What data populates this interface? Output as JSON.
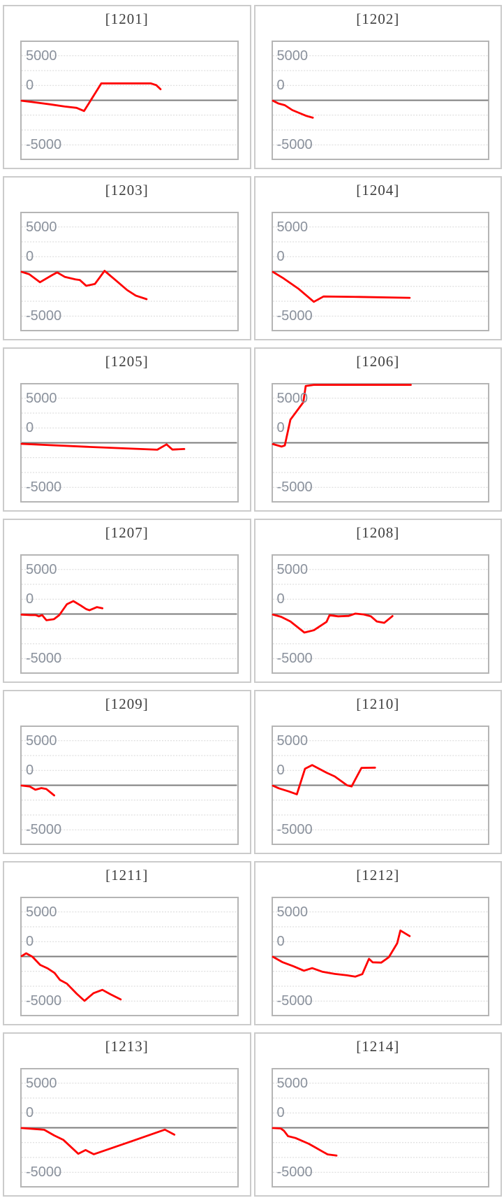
{
  "page": {
    "background": "#ffffff"
  },
  "colors": {
    "series_line": "#ff0000",
    "grid_dotted": "#d7d7d7",
    "zero_line": "#7d7d7d",
    "plot_border": "#b5b5b5",
    "card_border": "#cbcbcb",
    "tick_label": "#8a919c",
    "title_text": "#3d3d3d"
  },
  "chart_data": {
    "type": "line",
    "ylim": [
      -6550,
      6550
    ],
    "grid": true,
    "gridlines": [
      5000,
      3333,
      1667,
      -1667,
      -3333,
      -5000
    ],
    "zero_line_value": 0,
    "yticks": [
      {
        "label": "5000",
        "value": 5000,
        "anchor": 5000
      },
      {
        "label": "0",
        "value": 0,
        "anchor": 1667
      },
      {
        "label": "-5000",
        "value": -5000,
        "anchor": -5000
      }
    ],
    "series_color": "#ff0000",
    "charts": [
      {
        "title": "[1201]",
        "points": [
          [
            0,
            -50
          ],
          [
            0.05,
            -200
          ],
          [
            0.13,
            -450
          ],
          [
            0.2,
            -700
          ],
          [
            0.255,
            -850
          ],
          [
            0.29,
            -1200
          ],
          [
            0.37,
            1900
          ],
          [
            0.6,
            1900
          ],
          [
            0.625,
            1700
          ],
          [
            0.645,
            1250
          ]
        ]
      },
      {
        "title": "[1202]",
        "points": [
          [
            0,
            -50
          ],
          [
            0.025,
            -350
          ],
          [
            0.055,
            -550
          ],
          [
            0.09,
            -1100
          ],
          [
            0.125,
            -1450
          ],
          [
            0.155,
            -1750
          ],
          [
            0.185,
            -1950
          ]
        ]
      },
      {
        "title": "[1203]",
        "points": [
          [
            0,
            -30
          ],
          [
            0.035,
            -300
          ],
          [
            0.085,
            -1200
          ],
          [
            0.145,
            -350
          ],
          [
            0.165,
            -100
          ],
          [
            0.2,
            -600
          ],
          [
            0.25,
            -880
          ],
          [
            0.27,
            -950
          ],
          [
            0.3,
            -1600
          ],
          [
            0.34,
            -1400
          ],
          [
            0.385,
            80
          ],
          [
            0.44,
            -1040
          ],
          [
            0.49,
            -2080
          ],
          [
            0.53,
            -2700
          ],
          [
            0.58,
            -3100
          ]
        ]
      },
      {
        "title": "[1204]",
        "points": [
          [
            0,
            -50
          ],
          [
            0.045,
            -700
          ],
          [
            0.12,
            -1950
          ],
          [
            0.19,
            -3400
          ],
          [
            0.235,
            -2800
          ],
          [
            0.4,
            -2850
          ],
          [
            0.635,
            -2950
          ]
        ]
      },
      {
        "title": "[1205]",
        "points": [
          [
            0,
            -120
          ],
          [
            0.3,
            -450
          ],
          [
            0.63,
            -780
          ],
          [
            0.673,
            -180
          ],
          [
            0.7,
            -760
          ],
          [
            0.755,
            -700
          ]
        ]
      },
      {
        "title": "[1206]",
        "points": [
          [
            0,
            -150
          ],
          [
            0.04,
            -420
          ],
          [
            0.055,
            -300
          ],
          [
            0.081,
            2600
          ],
          [
            0.141,
            4550
          ],
          [
            0.152,
            6370
          ],
          [
            0.19,
            6500
          ],
          [
            0.64,
            6500
          ]
        ]
      },
      {
        "title": "[1207]",
        "points": [
          [
            0,
            -60
          ],
          [
            0.04,
            -120
          ],
          [
            0.065,
            -120
          ],
          [
            0.08,
            -260
          ],
          [
            0.095,
            -120
          ],
          [
            0.115,
            -700
          ],
          [
            0.15,
            -580
          ],
          [
            0.175,
            -120
          ],
          [
            0.21,
            1100
          ],
          [
            0.24,
            1450
          ],
          [
            0.275,
            950
          ],
          [
            0.3,
            550
          ],
          [
            0.315,
            420
          ],
          [
            0.35,
            780
          ],
          [
            0.375,
            640
          ]
        ]
      },
      {
        "title": "[1208]",
        "points": [
          [
            0,
            -60
          ],
          [
            0.038,
            -310
          ],
          [
            0.081,
            -830
          ],
          [
            0.146,
            -2080
          ],
          [
            0.19,
            -1820
          ],
          [
            0.249,
            -880
          ],
          [
            0.263,
            -130
          ],
          [
            0.303,
            -260
          ],
          [
            0.352,
            -210
          ],
          [
            0.382,
            50
          ],
          [
            0.422,
            -50
          ],
          [
            0.455,
            -260
          ],
          [
            0.482,
            -830
          ],
          [
            0.517,
            -990
          ],
          [
            0.555,
            -230
          ]
        ]
      },
      {
        "title": "[1209]",
        "points": [
          [
            0,
            -30
          ],
          [
            0.037,
            -130
          ],
          [
            0.064,
            -500
          ],
          [
            0.092,
            -310
          ],
          [
            0.115,
            -420
          ],
          [
            0.137,
            -860
          ],
          [
            0.151,
            -1140
          ]
        ]
      },
      {
        "title": "[1210]",
        "points": [
          [
            0,
            -50
          ],
          [
            0.027,
            -340
          ],
          [
            0.075,
            -700
          ],
          [
            0.111,
            -1010
          ],
          [
            0.149,
            1850
          ],
          [
            0.182,
            2270
          ],
          [
            0.249,
            1410
          ],
          [
            0.287,
            990
          ],
          [
            0.344,
            0
          ],
          [
            0.365,
            -130
          ],
          [
            0.411,
            1950
          ],
          [
            0.474,
            1980
          ]
        ]
      },
      {
        "title": "[1211]",
        "points": [
          [
            0,
            50
          ],
          [
            0.021,
            360
          ],
          [
            0.05,
            -30
          ],
          [
            0.086,
            -940
          ],
          [
            0.121,
            -1330
          ],
          [
            0.153,
            -1850
          ],
          [
            0.178,
            -2630
          ],
          [
            0.21,
            -3040
          ],
          [
            0.256,
            -4190
          ],
          [
            0.292,
            -4970
          ],
          [
            0.334,
            -4110
          ],
          [
            0.375,
            -3740
          ],
          [
            0.413,
            -4240
          ],
          [
            0.46,
            -4820
          ]
        ]
      },
      {
        "title": "[1212]",
        "points": [
          [
            0,
            -30
          ],
          [
            0.043,
            -620
          ],
          [
            0.095,
            -1090
          ],
          [
            0.144,
            -1590
          ],
          [
            0.182,
            -1300
          ],
          [
            0.231,
            -1720
          ],
          [
            0.287,
            -1950
          ],
          [
            0.344,
            -2110
          ],
          [
            0.382,
            -2260
          ],
          [
            0.415,
            -1980
          ],
          [
            0.446,
            -260
          ],
          [
            0.463,
            -650
          ],
          [
            0.503,
            -680
          ],
          [
            0.538,
            -80
          ],
          [
            0.577,
            1480
          ],
          [
            0.592,
            2920
          ],
          [
            0.635,
            2290
          ]
        ]
      },
      {
        "title": "[1213]",
        "points": [
          [
            0,
            -30
          ],
          [
            0.105,
            -230
          ],
          [
            0.151,
            -860
          ],
          [
            0.193,
            -1350
          ],
          [
            0.263,
            -2920
          ],
          [
            0.297,
            -2500
          ],
          [
            0.335,
            -2970
          ],
          [
            0.5,
            -1600
          ],
          [
            0.665,
            -210
          ],
          [
            0.709,
            -780
          ]
        ]
      },
      {
        "title": "[1214]",
        "points": [
          [
            0,
            -30
          ],
          [
            0.036,
            -80
          ],
          [
            0.051,
            -340
          ],
          [
            0.07,
            -940
          ],
          [
            0.105,
            -1150
          ],
          [
            0.166,
            -1800
          ],
          [
            0.195,
            -2190
          ],
          [
            0.231,
            -2680
          ],
          [
            0.254,
            -2990
          ],
          [
            0.295,
            -3120
          ]
        ]
      }
    ]
  }
}
